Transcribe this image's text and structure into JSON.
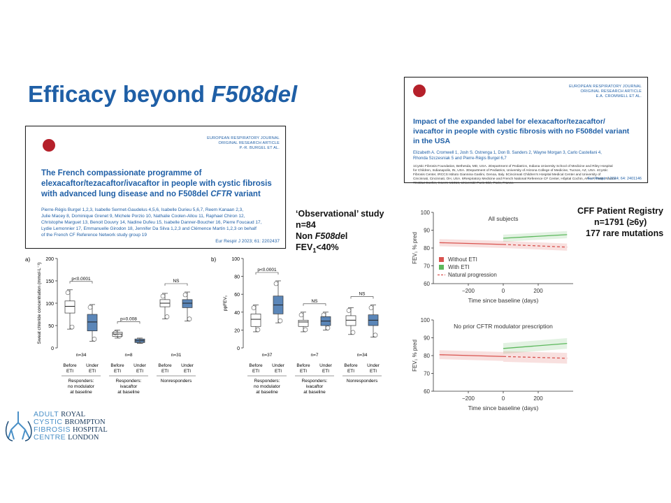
{
  "slide": {
    "title_plain": "Efficacy beyond ",
    "title_italic": "F508del"
  },
  "paper_left": {
    "journal": "EUROPEAN RESPIRATORY JOURNAL",
    "article_type": "ORIGINAL RESEARCH ARTICLE",
    "short_author": "P.-R. BURGEL ET AL.",
    "title_line1": "The French compassionate programme of",
    "title_line2": "elexacaftor/tezacaftor/ivacaftor in people with cystic fibrosis",
    "title_line3_a": "with advanced lung disease and no F508del ",
    "title_line3_b": "CFTR",
    "title_line3_c": " variant",
    "authors_l1": "Pierre-Régis Burgel 1,2,3, Isabelle Sermet-Gaudelus 4,5,6, Isabelle Durieu 5,6,7, Reem Kanaan 2,3,",
    "authors_l2": "Julie Macey 8, Dominique Grenet 9, Michele Porzio 10, Nathalie Coolen-Allou 11, Raphael Chiron 12,",
    "authors_l3": "Christophe Marguet 13, Benoit Douvry 14, Nadine Dufeu 15, Isabelle Danner-Boucher 16, Pierre Foucaud 17,",
    "authors_l4": "Lydie Lemonnier 17, Emmanuelle Girodon 18, Jennifer Da Silva 1,2,3 and Clémence Martin 1,2,3 on behalf",
    "authors_l5": "of the French CF Reference Network study group 19",
    "citation": "Eur Respir J 2023; 61: 2202437"
  },
  "paper_right": {
    "journal": "EUROPEAN RESPIRATORY JOURNAL",
    "article_type": "ORIGINAL RESEARCH ARTICLE",
    "short_author": "E.A. CROMWELL ET AL.",
    "title_line1": "Impact of the expanded label for elexacaftor/tezacaftor/",
    "title_line2": "ivacaftor in people with cystic fibrosis with no F508del variant",
    "title_line3": "in the USA",
    "authors_l1": "Elizabeth A. Cromwell 1, Josh S. Ostrenga 1, Don B. Sanders 2, Wayne Morgan 3, Carlo Castellani 4,",
    "authors_l2": "Rhonda Szczesniak 5 and Pierre-Régis Burgel 6,7",
    "affil_l1": "1Cystic Fibrosis Foundation, Bethesda, MD, USA. 2Department of Pediatrics, Indiana University School of Medicine and Riley Hospital",
    "affil_l2": "for Children, Indianapolis, IN, USA. 3Department of Pediatrics, University of Arizona College of Medicine, Tucson, AZ, USA. 4Cystic",
    "affil_l3": "Fibrosis Center, IRCCS Istituto Giannina Gaslini, Genoa, Italy. 5Cincinnati Children's Hospital Medical Center and University of",
    "affil_l4": "Cincinnati, Cincinnati, OH, USA. 6Respiratory Medicine and French National Reference CF Center, Hôpital Cochin, AP-HP, Paris, France.",
    "affil_l5": "7Institut Cochin, Inserm U1016, Université Paris Cité, Paris, France.",
    "citation": "Eur Respir J 2024; 64: 2401146"
  },
  "study_left": {
    "line1": "‘Observational’ study",
    "line2": "n=84",
    "line3_a": "Non ",
    "line3_b": "F508de",
    "line3_c": "l",
    "line4_a": "FEV",
    "line4_sub": "1",
    "line4_b": "<40%"
  },
  "study_right": {
    "line1": "CFF Patient Registry",
    "line2": "n=1791 (≥6y)",
    "line3": "177 rare mutations"
  },
  "colors": {
    "title_blue": "#1f5fa6",
    "before_box": "#ffffff",
    "under_box": "#5b86b8",
    "without_eti": "#d9534f",
    "with_eti": "#5cb85c",
    "natural": "#d9534f"
  },
  "chart_data": [
    {
      "type": "box",
      "panel": "a)",
      "ylabel": "Sweat chloride concentration (mmol·L⁻¹)",
      "ylim": [
        0,
        200
      ],
      "yticks": [
        "0",
        "50",
        "100",
        "150",
        "200"
      ],
      "groups": [
        {
          "label_l1": "Responders:",
          "label_l2": "no modulator",
          "label_l3": "at baseline",
          "n": "n=34",
          "stat": "p<0.0001",
          "boxes": [
            {
              "name": "Before",
              "name2": "ETI",
              "q1": 78,
              "median": 93,
              "q3": 105,
              "lo": 42,
              "hi": 130
            },
            {
              "name": "Under",
              "name2": "ETI",
              "q1": 38,
              "median": 58,
              "q3": 75,
              "lo": 15,
              "hi": 97
            }
          ]
        },
        {
          "label_l1": "Responders:",
          "label_l2": "ivacaftor",
          "label_l3": "at baseline",
          "n": "n=8",
          "stat": "p=0.008",
          "boxes": [
            {
              "name": "Before",
              "name2": "ETI",
              "q1": 26,
              "median": 31,
              "q3": 35,
              "lo": 22,
              "hi": 40
            },
            {
              "name": "Under",
              "name2": "ETI",
              "q1": 12,
              "median": 16,
              "q3": 20,
              "lo": 10,
              "hi": 22
            }
          ]
        },
        {
          "label_l1": "Nonresponders",
          "label_l2": "",
          "label_l3": "",
          "n": "n=31",
          "stat": "NS",
          "boxes": [
            {
              "name": "Before",
              "name2": "ETI",
              "q1": 92,
              "median": 100,
              "q3": 108,
              "lo": 65,
              "hi": 122
            },
            {
              "name": "Under",
              "name2": "ETI",
              "q1": 90,
              "median": 100,
              "q3": 108,
              "lo": 60,
              "hi": 125
            }
          ]
        }
      ]
    },
    {
      "type": "box",
      "panel": "b)",
      "ylabel": "ppFEV₁",
      "ylim": [
        0,
        100
      ],
      "yticks": [
        "0",
        "20",
        "40",
        "60",
        "80",
        "100"
      ],
      "groups": [
        {
          "label_l1": "Responders:",
          "label_l2": "no modulator",
          "label_l3": "at baseline",
          "n": "n=37",
          "stat": "p<0.0001",
          "boxes": [
            {
              "name": "Before",
              "name2": "ETI",
              "q1": 24,
              "median": 32,
              "q3": 38,
              "lo": 18,
              "hi": 48
            },
            {
              "name": "Under",
              "name2": "ETI",
              "q1": 38,
              "median": 48,
              "q3": 58,
              "lo": 28,
              "hi": 75
            }
          ]
        },
        {
          "label_l1": "Responders:",
          "label_l2": "ivacaftor",
          "label_l3": "at baseline",
          "n": "n=7",
          "stat": "NS",
          "boxes": [
            {
              "name": "Before",
              "name2": "ETI",
              "q1": 24,
              "median": 29,
              "q3": 31,
              "lo": 18,
              "hi": 40
            },
            {
              "name": "Under",
              "name2": "ETI",
              "q1": 25,
              "median": 30,
              "q3": 35,
              "lo": 20,
              "hi": 40
            }
          ]
        },
        {
          "label_l1": "Nonresponders",
          "label_l2": "",
          "label_l3": "",
          "n": "n=34",
          "stat": "NS",
          "boxes": [
            {
              "name": "Before",
              "name2": "ETI",
              "q1": 25,
              "median": 31,
              "q3": 36,
              "lo": 15,
              "hi": 45
            },
            {
              "name": "Under",
              "name2": "ETI",
              "q1": 25,
              "median": 31,
              "q3": 37,
              "lo": 12,
              "hi": 48
            }
          ]
        }
      ]
    },
    {
      "type": "line",
      "panel_title": "All subjects",
      "xlabel": "Time since baseline (days)",
      "ylabel": "FEV₁ % pred",
      "xlim": [
        -400,
        400
      ],
      "ylim": [
        60,
        100
      ],
      "xticks": [
        "−200",
        "0",
        "200"
      ],
      "yticks": [
        "60",
        "70",
        "80",
        "90",
        "100"
      ],
      "legend": [
        "Without ETI",
        "With ETI",
        "Natural progression"
      ],
      "series": [
        {
          "name": "Without ETI",
          "x": [
            -365,
            0
          ],
          "y": [
            83,
            82
          ],
          "band": 2
        },
        {
          "name": "With ETI",
          "x": [
            0,
            365
          ],
          "y": [
            85.5,
            87.5
          ],
          "band": 2
        },
        {
          "name": "Natural progression",
          "x": [
            0,
            365
          ],
          "y": [
            82,
            80.5
          ],
          "band": 2
        }
      ]
    },
    {
      "type": "line",
      "panel_title": "No prior CFTR modulator prescription",
      "xlabel": "Time since baseline (days)",
      "ylabel": "FEV₁ % pred",
      "xlim": [
        -400,
        400
      ],
      "ylim": [
        60,
        100
      ],
      "xticks": [
        "−200",
        "0",
        "200"
      ],
      "yticks": [
        "60",
        "70",
        "80",
        "90",
        "100"
      ],
      "series": [
        {
          "name": "Without ETI",
          "x": [
            -365,
            0
          ],
          "y": [
            80.5,
            79.5
          ],
          "band": 2.5
        },
        {
          "name": "With ETI",
          "x": [
            0,
            365
          ],
          "y": [
            84,
            86.8
          ],
          "band": 3
        },
        {
          "name": "Natural progression",
          "x": [
            0,
            365
          ],
          "y": [
            79.5,
            78.5
          ],
          "band": 3
        }
      ]
    }
  ],
  "hospital_logo": {
    "left_l1": "ADULT",
    "left_l2": "CYSTIC",
    "left_l3": "FIBROSIS",
    "left_l4": "CENTRE",
    "right_l1": "ROYAL",
    "right_l2": "BROMPTON",
    "right_l3": "HOSPITAL",
    "right_l4": "LONDON"
  }
}
